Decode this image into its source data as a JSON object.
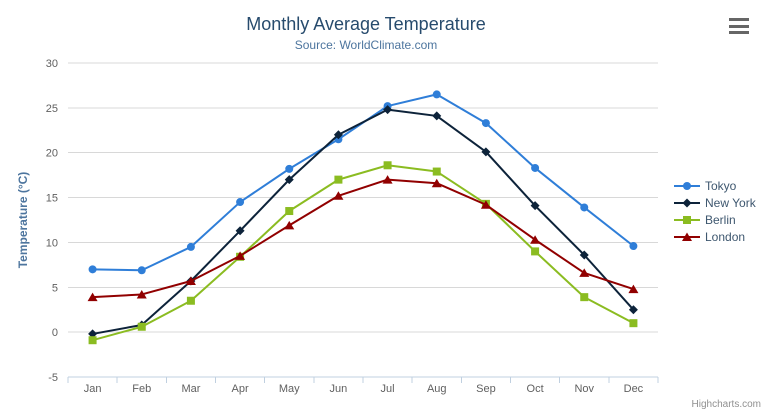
{
  "chart": {
    "title": "Monthly Average Temperature",
    "subtitle": "Source: WorldClimate.com",
    "credits": "Highcharts.com",
    "context_menu_icon": "hamburger-icon"
  },
  "chart_data": {
    "type": "line",
    "title": "Monthly Average Temperature",
    "subtitle": "Source: WorldClimate.com",
    "xlabel": "",
    "ylabel": "Temperature (°C)",
    "ylim": [
      -5,
      30
    ],
    "y_ticks": [
      -5,
      0,
      5,
      10,
      15,
      20,
      25,
      30
    ],
    "grid": true,
    "legend_position": "right",
    "categories": [
      "Jan",
      "Feb",
      "Mar",
      "Apr",
      "May",
      "Jun",
      "Jul",
      "Aug",
      "Sep",
      "Oct",
      "Nov",
      "Dec"
    ],
    "series": [
      {
        "name": "Tokyo",
        "color": "#2f7ed8",
        "marker": "circle",
        "values": [
          7.0,
          6.9,
          9.5,
          14.5,
          18.2,
          21.5,
          25.2,
          26.5,
          23.3,
          18.3,
          13.9,
          9.6
        ]
      },
      {
        "name": "New York",
        "color": "#0d233a",
        "marker": "diamond",
        "values": [
          -0.2,
          0.8,
          5.7,
          11.3,
          17.0,
          22.0,
          24.8,
          24.1,
          20.1,
          14.1,
          8.6,
          2.5
        ]
      },
      {
        "name": "Berlin",
        "color": "#8bbc21",
        "marker": "square",
        "values": [
          -0.9,
          0.6,
          3.5,
          8.4,
          13.5,
          17.0,
          18.6,
          17.9,
          14.3,
          9.0,
          3.9,
          1.0
        ]
      },
      {
        "name": "London",
        "color": "#910000",
        "marker": "triangle",
        "values": [
          3.9,
          4.2,
          5.7,
          8.5,
          11.9,
          15.2,
          17.0,
          16.6,
          14.2,
          10.3,
          6.6,
          4.8
        ]
      }
    ],
    "styles": {
      "grid_color": "#d8d8d8",
      "axis_line_color": "#c0d0e0",
      "axis_label_color": "#606060",
      "y_axis_title_color": "#4d759e",
      "legend_text_color": "#3e576f"
    }
  }
}
